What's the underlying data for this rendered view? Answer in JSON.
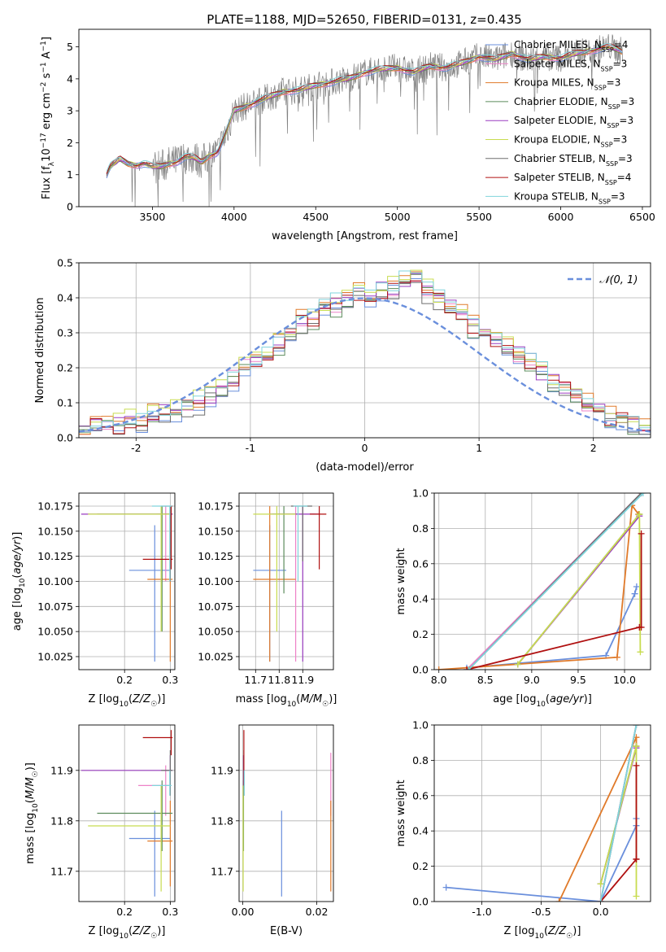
{
  "colors": {
    "Chabrier MILES": "#6a8fdc",
    "Salpeter MILES": "#ee82c8",
    "Kroupa MILES": "#e07a2a",
    "Chabrier ELODIE": "#5c8c5c",
    "Salpeter ELODIE": "#9a3cc0",
    "Kroupa ELODIE": "#c8dc50",
    "Chabrier STELIB": "#6e6e6e",
    "Salpeter STELIB": "#b01010",
    "Kroupa STELIB": "#80d4dc"
  },
  "chart_data": [
    {
      "id": "spectrum",
      "type": "line",
      "title": "PLATE=1188, MJD=52650, FIBERID=0131, z=0.435",
      "xlabel": "wavelength [Angstrom, rest frame]",
      "ylabel": "Flux [f_λ 10^-17 erg cm^-2 s^-1 A^-1]",
      "xlim": [
        3050,
        6550
      ],
      "ylim": [
        0,
        5.55
      ],
      "xticks": [
        3500,
        4000,
        4500,
        5000,
        5500,
        6000,
        6500
      ],
      "yticks": [
        0,
        1,
        2,
        3,
        4,
        5
      ],
      "grid": false,
      "legend_position": "right",
      "continuum": {
        "x": [
          3220,
          3240,
          3280,
          3300,
          3350,
          3400,
          3450,
          3500,
          3550,
          3600,
          3650,
          3700,
          3750,
          3800,
          3850,
          3900,
          3950,
          4000,
          4100,
          4200,
          4300,
          4400,
          4500,
          4600,
          4700,
          4800,
          4900,
          5000,
          5100,
          5200,
          5300,
          5400,
          5500,
          5600,
          5700,
          5800,
          5900,
          6000,
          6100,
          6200,
          6300,
          6380
        ],
        "y": [
          1.0,
          1.25,
          1.4,
          1.5,
          1.35,
          1.3,
          1.35,
          1.25,
          1.25,
          1.35,
          1.4,
          1.55,
          1.55,
          1.4,
          1.6,
          1.7,
          2.3,
          3.0,
          3.2,
          3.4,
          3.6,
          3.65,
          3.8,
          3.9,
          4.0,
          4.2,
          4.3,
          4.35,
          4.2,
          4.4,
          4.35,
          4.5,
          4.7,
          4.6,
          4.8,
          4.6,
          4.7,
          4.65,
          4.8,
          4.9,
          5.0,
          4.85
        ]
      },
      "legend": [
        {
          "name": "Chabrier MILES, N",
          "sub": "SSP",
          "suffix": "=4"
        },
        {
          "name": "Salpeter MILES, N",
          "sub": "SSP",
          "suffix": "=3"
        },
        {
          "name": "Kroupa MILES, N",
          "sub": "SSP",
          "suffix": "=3"
        },
        {
          "name": "Chabrier ELODIE, N",
          "sub": "SSP",
          "suffix": "=3"
        },
        {
          "name": "Salpeter ELODIE, N",
          "sub": "SSP",
          "suffix": "=3"
        },
        {
          "name": "Kroupa ELODIE, N",
          "sub": "SSP",
          "suffix": "=3"
        },
        {
          "name": "Chabrier STELIB, N",
          "sub": "SSP",
          "suffix": "=3"
        },
        {
          "name": "Salpeter STELIB, N",
          "sub": "SSP",
          "suffix": "=4"
        },
        {
          "name": "Kroupa STELIB, N",
          "sub": "SSP",
          "suffix": "=3"
        }
      ]
    },
    {
      "id": "residuals",
      "type": "histogram",
      "xlabel": "(data-model)/error",
      "ylabel": "Normed distribution",
      "xlim": [
        -2.5,
        2.5
      ],
      "ylim": [
        0,
        0.5
      ],
      "xticks": [
        -2,
        -1,
        0,
        1,
        2
      ],
      "yticks": [
        0.0,
        0.1,
        0.2,
        0.3,
        0.4,
        0.5
      ],
      "grid": true,
      "legend": "𝒩(0, 1)",
      "legend_position": "top-right",
      "bin_width": 0.1,
      "bin_start": -2.5,
      "values": [
        0.02,
        0.03,
        0.04,
        0.035,
        0.05,
        0.045,
        0.06,
        0.07,
        0.08,
        0.09,
        0.1,
        0.12,
        0.15,
        0.17,
        0.2,
        0.22,
        0.24,
        0.27,
        0.3,
        0.33,
        0.34,
        0.37,
        0.38,
        0.39,
        0.41,
        0.4,
        0.42,
        0.43,
        0.45,
        0.46,
        0.42,
        0.4,
        0.38,
        0.35,
        0.32,
        0.3,
        0.28,
        0.26,
        0.24,
        0.22,
        0.19,
        0.16,
        0.14,
        0.12,
        0.1,
        0.08,
        0.06,
        0.05,
        0.035,
        0.03
      ]
    },
    {
      "id": "age-vs-Z",
      "type": "errorbar",
      "xlabel": "Z [log10(Z/Z☉)]",
      "ylabel": "age [log10(age/yr)]",
      "xlim": [
        0.1,
        0.31
      ],
      "ylim": [
        10.012,
        10.188
      ],
      "xticks": [
        0.2,
        0.3
      ],
      "yticks": [
        10.025,
        10.05,
        10.075,
        10.1,
        10.125,
        10.15,
        10.175
      ],
      "grid": true,
      "points": [
        {
          "model": "Chabrier MILES",
          "x": 0.266,
          "y": 10.111,
          "xerr": [
            0.21,
            0.3
          ],
          "yerr": [
            10.02,
            10.156
          ]
        },
        {
          "model": "Salpeter MILES",
          "x": 0.29,
          "y": 10.167,
          "xerr": [
            0.27,
            0.3
          ],
          "yerr": [
            10.1,
            10.175
          ]
        },
        {
          "model": "Kroupa MILES",
          "x": 0.3,
          "y": 10.102,
          "xerr": [
            0.25,
            0.305
          ],
          "yerr": [
            10.02,
            10.175
          ]
        },
        {
          "model": "Chabrier ELODIE",
          "x": 0.282,
          "y": 10.167,
          "xerr": [
            0.14,
            0.305
          ],
          "yerr": [
            10.05,
            10.175
          ]
        },
        {
          "model": "Salpeter ELODIE",
          "x": 0.3,
          "y": 10.167,
          "xerr": [
            0.105,
            0.305
          ],
          "yerr": [
            10.1,
            10.175
          ]
        },
        {
          "model": "Kroupa ELODIE",
          "x": 0.28,
          "y": 10.167,
          "xerr": [
            0.12,
            0.3
          ],
          "yerr": [
            10.05,
            10.175
          ]
        },
        {
          "model": "Chabrier STELIB",
          "x": 0.3,
          "y": 10.175,
          "xerr": [
            0.28,
            0.305
          ],
          "yerr": [
            10.1,
            10.175
          ]
        },
        {
          "model": "Salpeter STELIB",
          "x": 0.302,
          "y": 10.122,
          "xerr": [
            0.24,
            0.305
          ],
          "yerr": [
            10.112,
            10.175
          ]
        },
        {
          "model": "Kroupa STELIB",
          "x": 0.299,
          "y": 10.175,
          "xerr": [
            0.26,
            0.303
          ],
          "yerr": [
            10.1,
            10.175
          ]
        }
      ]
    },
    {
      "id": "age-vs-mass",
      "type": "errorbar",
      "xlabel": "mass [log10(M/M☉)]",
      "ylabel": "",
      "xlim": [
        11.63,
        12.03
      ],
      "ylim": [
        10.012,
        10.188
      ],
      "xticks": [
        11.7,
        11.8,
        11.9
      ],
      "yticks": [
        10.025,
        10.05,
        10.075,
        10.1,
        10.125,
        10.15,
        10.175
      ],
      "grid": true,
      "points": [
        {
          "model": "Chabrier MILES",
          "x": 11.76,
          "y": 10.111,
          "xerr": [
            11.69,
            11.83
          ],
          "yerr": [
            10.02,
            10.156
          ]
        },
        {
          "model": "Salpeter MILES",
          "x": 11.87,
          "y": 10.167,
          "xerr": [
            11.83,
            11.95
          ],
          "yerr": [
            10.02,
            10.175
          ]
        },
        {
          "model": "Kroupa MILES",
          "x": 11.76,
          "y": 10.102,
          "xerr": [
            11.69,
            11.87
          ],
          "yerr": [
            10.02,
            10.175
          ]
        },
        {
          "model": "Chabrier ELODIE",
          "x": 11.82,
          "y": 10.167,
          "xerr": [
            11.77,
            11.88
          ],
          "yerr": [
            10.088,
            10.175
          ]
        },
        {
          "model": "Salpeter ELODIE",
          "x": 11.9,
          "y": 10.167,
          "xerr": [
            11.76,
            11.97
          ],
          "yerr": [
            10.02,
            10.175
          ]
        },
        {
          "model": "Kroupa ELODIE",
          "x": 11.79,
          "y": 10.167,
          "xerr": [
            11.69,
            11.87
          ],
          "yerr": [
            10.05,
            10.175
          ]
        },
        {
          "model": "Chabrier STELIB",
          "x": 11.9,
          "y": 10.175,
          "xerr": [
            11.85,
            11.94
          ],
          "yerr": [
            10.12,
            10.175
          ]
        },
        {
          "model": "Salpeter STELIB",
          "x": 11.97,
          "y": 10.167,
          "xerr": [
            11.93,
            12.0
          ],
          "yerr": [
            10.112,
            10.175
          ]
        },
        {
          "model": "Kroupa STELIB",
          "x": 11.88,
          "y": 10.175,
          "xerr": [
            11.86,
            11.92
          ],
          "yerr": [
            10.1,
            10.175
          ]
        }
      ]
    },
    {
      "id": "weight-vs-age",
      "type": "line",
      "xlabel": "age [log10(age/yr)]",
      "ylabel": "mass weight",
      "xlim": [
        7.95,
        10.28
      ],
      "ylim": [
        0,
        1.0
      ],
      "xticks": [
        8.0,
        8.5,
        9.0,
        9.5,
        10.0
      ],
      "yticks": [
        0.0,
        0.2,
        0.4,
        0.6,
        0.8,
        1.0
      ],
      "grid": true,
      "series": [
        {
          "model": "Chabrier MILES",
          "x": [
            8.3,
            9.8,
            10.11,
            10.13
          ],
          "y": [
            0.01,
            0.08,
            0.43,
            0.47
          ]
        },
        {
          "model": "Salpeter MILES",
          "x": [
            8.3,
            10.18
          ],
          "y": [
            0.0,
            1.0
          ]
        },
        {
          "model": "Kroupa MILES",
          "x": [
            8.0,
            9.92,
            10.08,
            10.15
          ],
          "y": [
            0.0,
            0.07,
            0.93,
            0.88
          ]
        },
        {
          "model": "Chabrier ELODIE",
          "x": [
            8.85,
            10.16
          ],
          "y": [
            0.03,
            0.88
          ]
        },
        {
          "model": "Salpeter ELODIE",
          "x": [
            8.85,
            10.16
          ],
          "y": [
            0.03,
            0.87
          ]
        },
        {
          "model": "Kroupa ELODIE",
          "x": [
            8.85,
            10.16,
            10.17
          ],
          "y": [
            0.03,
            0.88,
            0.1
          ]
        },
        {
          "model": "Chabrier STELIB",
          "x": [
            8.32,
            10.18
          ],
          "y": [
            0.0,
            1.0
          ]
        },
        {
          "model": "Salpeter STELIB",
          "x": [
            8.3,
            10.16,
            10.18,
            10.18
          ],
          "y": [
            0.0,
            0.24,
            0.24,
            0.77
          ]
        },
        {
          "model": "Kroupa STELIB",
          "x": [
            8.32,
            10.2
          ],
          "y": [
            0.0,
            1.0
          ]
        }
      ]
    },
    {
      "id": "mass-vs-Z",
      "type": "errorbar",
      "xlabel": "Z [log10(Z/Z☉)]",
      "ylabel": "mass [log10(M/M☉)]",
      "xlim": [
        0.1,
        0.31
      ],
      "ylim": [
        11.64,
        11.99
      ],
      "xticks": [
        0.2,
        0.3
      ],
      "yticks": [
        11.7,
        11.8,
        11.9
      ],
      "grid": true,
      "points": [
        {
          "model": "Chabrier MILES",
          "x": 0.266,
          "y": 11.765,
          "xerr": [
            0.21,
            0.3
          ],
          "yerr": [
            11.65,
            11.82
          ]
        },
        {
          "model": "Salpeter MILES",
          "x": 0.29,
          "y": 11.87,
          "xerr": [
            0.23,
            0.3
          ],
          "yerr": [
            11.81,
            11.91
          ]
        },
        {
          "model": "Kroupa MILES",
          "x": 0.3,
          "y": 11.76,
          "xerr": [
            0.25,
            0.305
          ],
          "yerr": [
            11.67,
            11.84
          ]
        },
        {
          "model": "Chabrier ELODIE",
          "x": 0.282,
          "y": 11.815,
          "xerr": [
            0.14,
            0.305
          ],
          "yerr": [
            11.74,
            11.88
          ]
        },
        {
          "model": "Salpeter ELODIE",
          "x": 0.3,
          "y": 11.9,
          "xerr": [
            0.105,
            0.305
          ],
          "yerr": [
            11.87,
            11.93
          ]
        },
        {
          "model": "Kroupa ELODIE",
          "x": 0.28,
          "y": 11.79,
          "xerr": [
            0.12,
            0.3
          ],
          "yerr": [
            11.66,
            11.87
          ]
        },
        {
          "model": "Chabrier STELIB",
          "x": 0.3,
          "y": 11.9,
          "xerr": [
            0.28,
            0.305
          ],
          "yerr": [
            11.85,
            11.94
          ]
        },
        {
          "model": "Salpeter STELIB",
          "x": 0.302,
          "y": 11.965,
          "xerr": [
            0.24,
            0.305
          ],
          "yerr": [
            11.93,
            11.98
          ]
        },
        {
          "model": "Kroupa STELIB",
          "x": 0.299,
          "y": 11.87,
          "xerr": [
            0.26,
            0.303
          ],
          "yerr": [
            11.85,
            11.9
          ]
        }
      ]
    },
    {
      "id": "mass-vs-EBV",
      "type": "errorbar",
      "xlabel": "E(B-V)",
      "ylabel": "",
      "xlim": [
        -0.001,
        0.0245
      ],
      "ylim": [
        11.64,
        11.99
      ],
      "xticks": [
        0.0,
        0.02
      ],
      "xtick_labels": [
        "0.00",
        "0.02"
      ],
      "yticks": [
        11.7,
        11.8,
        11.9
      ],
      "grid": true,
      "points": [
        {
          "model": "Chabrier MILES",
          "x": 0.0105,
          "y": 11.765,
          "yerr": [
            11.65,
            11.82
          ]
        },
        {
          "model": "Salpeter MILES",
          "x": 0.0238,
          "y": 11.87,
          "yerr": [
            11.81,
            11.935
          ]
        },
        {
          "model": "Kroupa MILES",
          "x": 0.0238,
          "y": 11.76,
          "yerr": [
            11.66,
            11.84
          ]
        },
        {
          "model": "Chabrier ELODIE",
          "x": 0.0002,
          "y": 11.815,
          "yerr": [
            11.74,
            11.88
          ]
        },
        {
          "model": "Salpeter ELODIE",
          "x": 0.0002,
          "y": 11.9,
          "yerr": [
            11.87,
            11.93
          ]
        },
        {
          "model": "Kroupa ELODIE",
          "x": 0.0001,
          "y": 11.79,
          "yerr": [
            11.66,
            11.87
          ]
        },
        {
          "model": "Chabrier STELIB",
          "x": 0.0003,
          "y": 11.9,
          "yerr": [
            11.85,
            11.94
          ]
        },
        {
          "model": "Salpeter STELIB",
          "x": 0.0003,
          "y": 11.965,
          "yerr": [
            11.87,
            11.98
          ]
        },
        {
          "model": "Kroupa STELIB",
          "x": 0.0004,
          "y": 11.87,
          "yerr": [
            11.85,
            11.9
          ]
        }
      ]
    },
    {
      "id": "weight-vs-Z",
      "type": "line",
      "xlabel": "Z [log10(Z/Z☉)]",
      "ylabel": "mass weight",
      "xlim": [
        -1.4,
        0.42
      ],
      "ylim": [
        0,
        1.0
      ],
      "xticks": [
        -1.0,
        -0.5,
        0.0
      ],
      "yticks": [
        0.0,
        0.2,
        0.4,
        0.6,
        0.8,
        1.0
      ],
      "grid": true,
      "series": [
        {
          "model": "Chabrier MILES",
          "x": [
            -1.3,
            0.0,
            0.3,
            0.3
          ],
          "y": [
            0.08,
            0.0,
            0.43,
            0.47
          ]
        },
        {
          "model": "Salpeter MILES",
          "x": [
            0.0,
            0.3
          ],
          "y": [
            0.0,
            1.0
          ]
        },
        {
          "model": "Kroupa MILES",
          "x": [
            -0.35,
            0.3,
            0.3
          ],
          "y": [
            0.0,
            0.93,
            0.88
          ]
        },
        {
          "model": "Chabrier ELODIE",
          "x": [
            0.0,
            0.3
          ],
          "y": [
            0.1,
            0.88
          ]
        },
        {
          "model": "Salpeter ELODIE",
          "x": [
            0.0,
            0.3
          ],
          "y": [
            0.1,
            0.87
          ]
        },
        {
          "model": "Kroupa ELODIE",
          "x": [
            0.0,
            0.3,
            0.3
          ],
          "y": [
            0.1,
            0.88,
            0.03
          ]
        },
        {
          "model": "Chabrier STELIB",
          "x": [
            0.0,
            0.3
          ],
          "y": [
            0.0,
            1.0
          ]
        },
        {
          "model": "Salpeter STELIB",
          "x": [
            0.0,
            0.3,
            0.3,
            0.3
          ],
          "y": [
            0.0,
            0.24,
            0.24,
            0.77
          ]
        },
        {
          "model": "Kroupa STELIB",
          "x": [
            0.0,
            0.3
          ],
          "y": [
            0.0,
            1.0
          ]
        }
      ]
    }
  ]
}
